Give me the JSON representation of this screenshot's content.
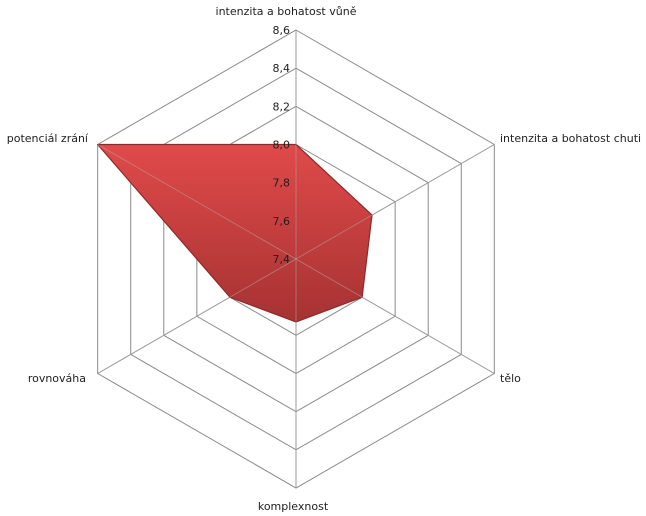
{
  "chart_data": {
    "type": "radar",
    "title": "",
    "axes": [
      "intenzita a bohatost vůně",
      "intenzita a bohatost chuti",
      "tělo",
      "komplexnost",
      "rovnováha",
      "potenciál zrání"
    ],
    "series": [
      {
        "values": [
          8.0,
          7.86,
          7.8,
          7.73,
          7.8,
          8.6
        ]
      }
    ],
    "r_range": [
      7.4,
      8.6
    ],
    "ticks": [
      "7,4",
      "7,6",
      "7,8",
      "8,0",
      "8,2",
      "8,4",
      "8,6"
    ],
    "tick_values": [
      7.4,
      7.6,
      7.8,
      8.0,
      8.2,
      8.4,
      8.6
    ],
    "grid": true,
    "legend": "none",
    "colors": {
      "fill_top": "#e04a4a",
      "fill_bottom": "#a63232",
      "stroke": "#8e2a2a",
      "grid": "#8a8a8a"
    }
  }
}
